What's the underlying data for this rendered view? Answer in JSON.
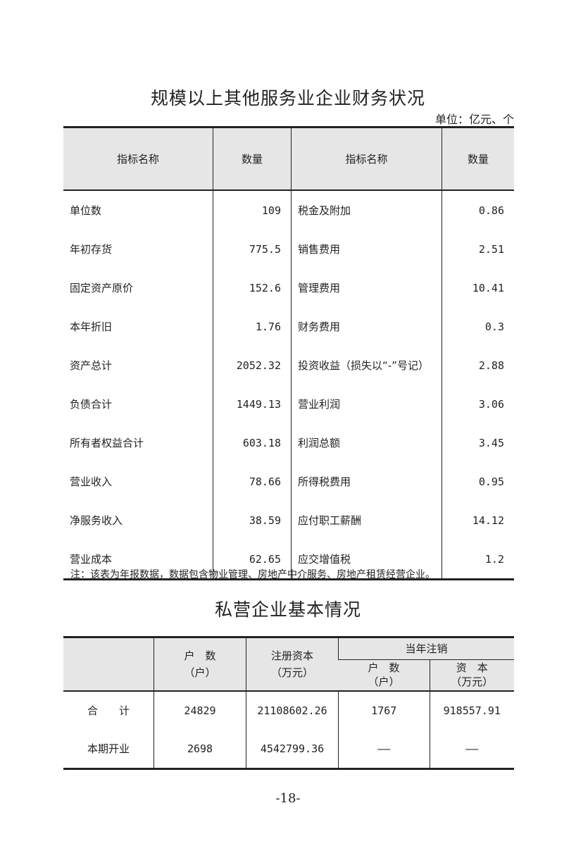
{
  "table1": {
    "title": "规模以上其他服务业企业财务状况",
    "unit": "单位：亿元、个",
    "headers": [
      "指标名称",
      "数量",
      "指标名称",
      "数量"
    ],
    "rows": [
      [
        "单位数",
        "109",
        "税金及附加",
        "0.86"
      ],
      [
        "年初存货",
        "775.5",
        "销售费用",
        "2.51"
      ],
      [
        "固定资产原价",
        "152.6",
        "管理费用",
        "10.41"
      ],
      [
        "本年折旧",
        "1.76",
        "财务费用",
        "0.3"
      ],
      [
        "资产总计",
        "2052.32",
        "投资收益（损失以“-”号记）",
        "2.88"
      ],
      [
        "负债合计",
        "1449.13",
        "营业利润",
        "3.06"
      ],
      [
        "所有者权益合计",
        "603.18",
        "利润总额",
        "3.45"
      ],
      [
        "营业收入",
        "78.66",
        "所得税费用",
        "0.95"
      ],
      [
        "净服务收入",
        "38.59",
        "应付职工薪酬",
        "14.12"
      ],
      [
        "营业成本",
        "62.65",
        "应交增值税",
        "1.2"
      ]
    ],
    "note": "注：该表为年报数据，数据包含物业管理、房地产中介服务、房地产租赁经营企业。"
  },
  "table2": {
    "title": "私营企业基本情况",
    "headers": {
      "households": "户　数",
      "households_unit": "（户）",
      "capital": "注册资本",
      "capital_unit": "（万元）",
      "cancelled": "当年注销",
      "cancelled_households": "户　数",
      "cancelled_households_unit": "（户）",
      "cancelled_capital": "资　本",
      "cancelled_capital_unit": "（万元）"
    },
    "rows": [
      [
        "合　　计",
        "24829",
        "21108602.26",
        "1767",
        "918557.91"
      ],
      [
        "本期开业",
        "2698",
        "4542799.36",
        "——",
        "——"
      ]
    ]
  },
  "page_number": "-18-"
}
